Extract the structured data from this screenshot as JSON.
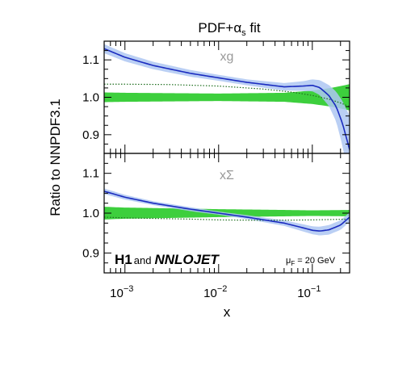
{
  "chart_data": {
    "type": "line",
    "title_main": "PDF+",
    "title_greek": "α",
    "title_sub": "s",
    "title_tail": " fit",
    "ylabel": "Ratio to NNPDF3.1",
    "xlabel": "x",
    "x_scale": "log",
    "xlim": [
      0.0006,
      0.25
    ],
    "x_ticks": [
      {
        "base": "10",
        "exp": "−3",
        "value": 0.001
      },
      {
        "base": "10",
        "exp": "−2",
        "value": 0.01
      },
      {
        "base": "10",
        "exp": "−1",
        "value": 0.1
      }
    ],
    "colors": {
      "fit_line": "#1a2bbf",
      "fit_band": "#aec7f2",
      "reference_band": "#33cc33",
      "reference_dotted": "#1f6f1f"
    },
    "panels": [
      {
        "label": "xg",
        "ylim": [
          0.85,
          1.15
        ],
        "y_ticks": [
          "0.9",
          "1.0",
          "1.1"
        ],
        "y_tick_values": [
          0.9,
          1.0,
          1.1
        ],
        "fit": {
          "x": [
            0.0006,
            0.001,
            0.002,
            0.005,
            0.01,
            0.02,
            0.05,
            0.08,
            0.1,
            0.12,
            0.15,
            0.18,
            0.21,
            0.25
          ],
          "y": [
            1.13,
            1.107,
            1.085,
            1.064,
            1.052,
            1.04,
            1.028,
            1.03,
            1.032,
            1.026,
            1.005,
            0.975,
            0.93,
            0.86
          ],
          "err": [
            0.012,
            0.011,
            0.01,
            0.009,
            0.008,
            0.008,
            0.01,
            0.013,
            0.016,
            0.02,
            0.028,
            0.04,
            0.06,
            0.09
          ]
        },
        "reference_band": {
          "x": [
            0.0006,
            0.001,
            0.01,
            0.05,
            0.1,
            0.15,
            0.2,
            0.25
          ],
          "err": [
            0.013,
            0.012,
            0.01,
            0.012,
            0.018,
            0.024,
            0.03,
            0.035
          ]
        },
        "reference_dotted": {
          "x": [
            0.0006,
            0.001,
            0.003,
            0.01,
            0.03,
            0.06,
            0.1,
            0.15,
            0.2,
            0.25
          ],
          "y": [
            1.035,
            1.035,
            1.034,
            1.03,
            1.022,
            1.014,
            1.005,
            0.995,
            0.985,
            0.975
          ]
        }
      },
      {
        "label": "xΣ",
        "ylim": [
          0.85,
          1.15
        ],
        "y_ticks": [
          "0.9",
          "1.0",
          "1.1"
        ],
        "y_tick_values": [
          0.9,
          1.0,
          1.1
        ],
        "fit": {
          "x": [
            0.0006,
            0.001,
            0.002,
            0.005,
            0.01,
            0.02,
            0.05,
            0.08,
            0.1,
            0.12,
            0.15,
            0.2,
            0.25
          ],
          "y": [
            1.055,
            1.04,
            1.025,
            1.01,
            1.0,
            0.99,
            0.975,
            0.963,
            0.957,
            0.955,
            0.958,
            0.97,
            0.99
          ],
          "err": [
            0.007,
            0.006,
            0.005,
            0.005,
            0.004,
            0.005,
            0.007,
            0.009,
            0.01,
            0.011,
            0.012,
            0.012,
            0.012
          ]
        },
        "reference_band": {
          "x": [
            0.0006,
            0.001,
            0.01,
            0.05,
            0.1,
            0.25
          ],
          "err": [
            0.016,
            0.014,
            0.01,
            0.008,
            0.007,
            0.008
          ]
        },
        "reference_dotted": {
          "x": [
            0.0006,
            0.001,
            0.005,
            0.01,
            0.03,
            0.1,
            0.25
          ],
          "y": [
            0.99,
            0.988,
            0.985,
            0.983,
            0.982,
            0.983,
            0.985
          ]
        }
      }
    ],
    "brand_h1": "H1",
    "brand_and": "and",
    "brand_nnlojet": "NNLOJET",
    "scale_mu": "μ",
    "scale_sub": "F",
    "scale_value": " = 20 GeV"
  }
}
